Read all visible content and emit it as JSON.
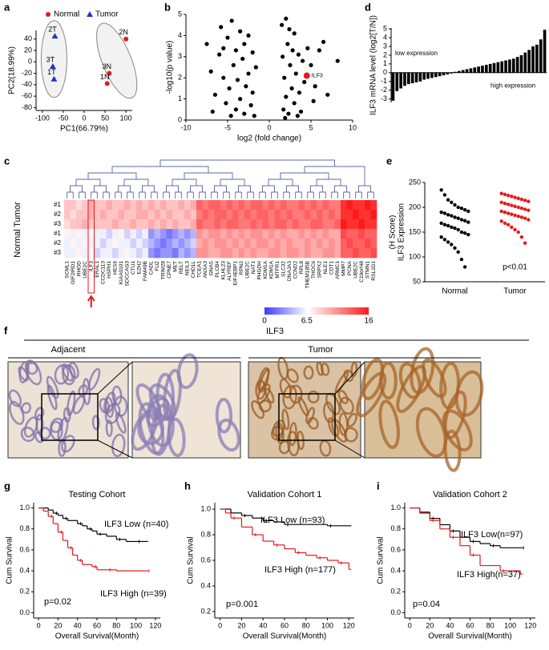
{
  "chart_data": [
    {
      "type": "scatter",
      "label": "a",
      "xlabel": "PC1(66.79%)",
      "ylabel": "PC2(18.99%)",
      "xlim": [
        -115,
        115
      ],
      "xticks": [
        -100,
        -50,
        0,
        50,
        100
      ],
      "ylim": [
        -85,
        55
      ],
      "yticks": [
        -80,
        -60,
        -40,
        -20,
        0,
        20,
        40
      ],
      "series": [
        {
          "name": "Normal",
          "color": "#e41a1c",
          "marker": "circle",
          "x": [
            100,
            60,
            55
          ],
          "values": [
            40,
            -20,
            -38
          ],
          "labels": [
            "2N",
            "3N",
            "1N"
          ]
        },
        {
          "name": "Tumor",
          "color": "#2233cc",
          "marker": "triangle",
          "x": [
            -70,
            -75,
            -72
          ],
          "values": [
            45,
            -8,
            -30
          ],
          "labels": [
            "2T",
            "3T",
            "1T"
          ]
        }
      ]
    },
    {
      "type": "scatter",
      "label": "b",
      "xlabel": "log2 (fold change)",
      "ylabel": "-log10(p value)",
      "xlim": [
        -10,
        10
      ],
      "xticks": [
        -10,
        -5,
        0,
        5,
        10
      ],
      "ylim": [
        0,
        5
      ],
      "yticks": [
        0,
        1,
        2,
        3,
        4,
        5
      ],
      "color": "#000000",
      "x": [
        -7.5,
        -7,
        -6.5,
        -6,
        -5.8,
        -5.5,
        -5.2,
        -5,
        -4.8,
        -4.5,
        -4.3,
        -4,
        -4,
        -3.8,
        -3.5,
        -3.5,
        -3.2,
        -3,
        -3,
        -2.8,
        -2.5,
        -2.5,
        -2.2,
        -2,
        -2,
        -1.8,
        -1.6,
        -6.8,
        -5.5,
        -4.6,
        1.5,
        1.6,
        1.7,
        1.8,
        2,
        2,
        2.2,
        2.3,
        2.5,
        2.7,
        3,
        3,
        3.2,
        3.5,
        3.6,
        3.8,
        4,
        4.2,
        4.6,
        5,
        5.3,
        5.5,
        6,
        6.5,
        7,
        8.2,
        2.4,
        1.9,
        3.4,
        2.8
      ],
      "values": [
        3.6,
        2.3,
        1.2,
        3.1,
        4.4,
        2,
        0.8,
        3.9,
        1.5,
        4.7,
        2.6,
        0.5,
        3.3,
        1.9,
        4.2,
        1,
        2.9,
        0.3,
        3.6,
        1.6,
        4,
        2.2,
        0.7,
        3.2,
        1.3,
        0.2,
        2.5,
        0.4,
        3.4,
        0.2,
        4.5,
        3,
        0.5,
        2,
        4.8,
        1.1,
        3.6,
        0.3,
        2.6,
        1.5,
        4.1,
        0.8,
        2.2,
        3.1,
        1.3,
        0.4,
        2.8,
        1.8,
        3.4,
        2.6,
        0.9,
        1.6,
        3.3,
        3.7,
        1.2,
        2.8,
        4.3,
        0.1,
        0.2,
        3.3
      ],
      "highlight": {
        "name": "ILF3",
        "x": 4.5,
        "y": 2.1,
        "color": "#e41a1c"
      }
    },
    {
      "type": "bar",
      "label": "d",
      "ylabel": "ILF3 mRNA level (log2[T/N])",
      "ylim": [
        -3.4,
        5.1
      ],
      "yticks": [
        -3,
        -2,
        -1,
        0,
        1,
        2,
        3,
        4,
        5
      ],
      "color": "#000000",
      "values": [
        -3.2,
        -2.1,
        -1.8,
        -1.5,
        -1.3,
        -1.2,
        -1.1,
        -1.0,
        -0.8,
        -0.7,
        -0.6,
        -0.5,
        -0.4,
        -0.3,
        -0.2,
        -0.1,
        0.1,
        0.2,
        0.3,
        0.4,
        0.5,
        0.6,
        0.7,
        0.8,
        0.9,
        1.0,
        1.1,
        1.2,
        1.3,
        1.4,
        1.5,
        1.6,
        1.8,
        2.0,
        2.3,
        2.6,
        3.0,
        3.2,
        3.8,
        4.9
      ],
      "annotations": [
        "low expression",
        "high expression"
      ]
    },
    {
      "type": "heatmap",
      "label": "c",
      "clim": [
        0,
        16
      ],
      "cticks": [
        0,
        6.5,
        16
      ],
      "genes": [
        "SCML1",
        "GIF2IRD1",
        "RHOD",
        "UBE2C",
        "ILF3",
        "ERAL1",
        "CCDC113",
        "HSPH1",
        "HES6",
        "KIAA0101",
        "SDCCAG3",
        "CTU1",
        "EZH2",
        "FAM49B",
        "CADL",
        "FUZ",
        "TRIM28",
        "CPNE7",
        "MET",
        "RELT",
        "NEIL3",
        "CHD1L",
        "TCEA1",
        "ANXA3",
        "GNAS",
        "PLCB4",
        "KLHL23",
        "ALYREF",
        "EIF4EBP1",
        "RPN2",
        "UBE2C",
        "NAT1",
        "PHGDH",
        "KDM1A",
        "KDM1A",
        "MTFR1",
        "SLC32",
        "DNAJA3",
        "CCND2",
        "RPL8",
        "TMEM185B",
        "THOC6",
        "SRPX2",
        "NLE1",
        "CDT1",
        "ARMC1",
        "MMP7",
        "PCNA",
        "UBE2C",
        "C19orf48",
        "STMN1",
        "RSL1D1"
      ],
      "series": [
        {
          "name": "Tumor",
          "row_labels": [
            "#1",
            "#2",
            "#3"
          ],
          "values": [
            [
              9,
              9,
              8,
              9,
              10,
              9,
              9,
              10,
              9,
              9,
              10,
              9,
              10,
              9,
              10,
              9,
              10,
              9,
              9,
              10,
              9,
              10,
              13,
              12,
              13,
              13,
              12,
              13,
              12,
              13,
              12,
              13,
              13,
              12,
              13,
              12,
              13,
              12,
              12,
              13,
              12,
              13,
              12,
              13,
              12,
              12,
              15,
              16,
              15,
              15,
              16,
              15
            ],
            [
              9,
              8,
              9,
              9,
              10,
              9,
              10,
              9,
              9,
              10,
              9,
              9,
              10,
              10,
              9,
              10,
              9,
              10,
              9,
              9,
              10,
              9,
              12,
              13,
              12,
              13,
              13,
              12,
              13,
              12,
              13,
              12,
              13,
              13,
              12,
              13,
              12,
              13,
              12,
              12,
              13,
              12,
              13,
              12,
              13,
              12,
              15,
              15,
              16,
              15,
              15,
              16
            ],
            [
              8,
              9,
              9,
              10,
              9,
              9,
              9,
              9,
              10,
              9,
              9,
              10,
              9,
              9,
              10,
              9,
              10,
              9,
              10,
              9,
              9,
              10,
              13,
              12,
              12,
              13,
              12,
              13,
              13,
              12,
              12,
              13,
              12,
              13,
              12,
              13,
              13,
              12,
              13,
              12,
              12,
              13,
              13,
              12,
              12,
              13,
              16,
              15,
              15,
              16,
              15,
              15
            ]
          ]
        },
        {
          "name": "Normal",
          "row_labels": [
            "#1",
            "#2",
            "#3"
          ],
          "values": [
            [
              7,
              6,
              7,
              6,
              7,
              6,
              6,
              5,
              6,
              7,
              5,
              6,
              5,
              6,
              3,
              4,
              3,
              2,
              3,
              4,
              3,
              4,
              11,
              10,
              11,
              11,
              10,
              11,
              10,
              11,
              10,
              11,
              11,
              10,
              11,
              10,
              11,
              10,
              10,
              11,
              10,
              11,
              10,
              11,
              10,
              10,
              14,
              13,
              13,
              14,
              13,
              13
            ],
            [
              6,
              7,
              6,
              7,
              6,
              6,
              5,
              6,
              7,
              6,
              6,
              5,
              6,
              5,
              4,
              3,
              2,
              3,
              4,
              3,
              4,
              5,
              10,
              11,
              10,
              11,
              11,
              10,
              11,
              10,
              11,
              10,
              11,
              11,
              10,
              11,
              10,
              11,
              10,
              10,
              11,
              10,
              11,
              10,
              11,
              10,
              13,
              14,
              13,
              13,
              14,
              13
            ],
            [
              6,
              6,
              7,
              6,
              7,
              5,
              6,
              6,
              5,
              6,
              7,
              6,
              5,
              6,
              3,
              2,
              3,
              3,
              2,
              4,
              3,
              4,
              11,
              11,
              10,
              10,
              11,
              11,
              10,
              11,
              10,
              11,
              10,
              10,
              11,
              11,
              10,
              11,
              11,
              10,
              11,
              10,
              10,
              11,
              11,
              10,
              13,
              13,
              14,
              13,
              13,
              14
            ]
          ]
        }
      ]
    },
    {
      "type": "strip",
      "label": "e",
      "ylabel": [
        "(H Score)",
        "ILF3 Expression"
      ],
      "ylim": [
        50,
        250
      ],
      "yticks": [
        50,
        100,
        150,
        200,
        250
      ],
      "categories": [
        "Normal",
        "Tumor"
      ],
      "series": [
        {
          "name": "Normal",
          "color": "#000000",
          "values": [
            235,
            225,
            215,
            210,
            205,
            200,
            198,
            195,
            192,
            190,
            188,
            185,
            183,
            180,
            178,
            175,
            173,
            170,
            168,
            165,
            163,
            160,
            158,
            155,
            150,
            148,
            145,
            140,
            135,
            130,
            125,
            118,
            110,
            95,
            80
          ]
        },
        {
          "name": "Tumor",
          "color": "#e41a1c",
          "values": [
            228,
            226,
            224,
            222,
            220,
            218,
            216,
            214,
            212,
            210,
            208,
            206,
            204,
            202,
            200,
            198,
            196,
            194,
            192,
            190,
            188,
            186,
            184,
            182,
            180,
            178,
            175,
            172,
            168,
            165,
            160,
            155,
            150,
            140,
            128
          ]
        }
      ],
      "annotation": "p<0.01"
    },
    {
      "type": "survival",
      "label": "g",
      "title": "Testing Cohort",
      "xlabel": "Overall Survival(Month)",
      "ylabel": "Cum Survival",
      "xlim": [
        -5,
        125
      ],
      "xticks": [
        0,
        20,
        40,
        60,
        80,
        100,
        120
      ],
      "ylim": [
        -0.05,
        1.05
      ],
      "yticks": [
        {
          "value": 0,
          "label": "0.0"
        },
        0.2,
        0.4,
        0.6,
        0.8,
        {
          "value": 1,
          "label": "1.0"
        }
      ],
      "series": [
        {
          "name": "ILF3 Low (n=40)",
          "color": "#000000",
          "x": [
            0,
            10,
            15,
            20,
            25,
            30,
            40,
            45,
            50,
            55,
            60,
            70,
            80,
            90,
            100,
            110
          ],
          "values": [
            1,
            0.98,
            0.95,
            0.93,
            0.9,
            0.88,
            0.85,
            0.83,
            0.8,
            0.78,
            0.75,
            0.73,
            0.7,
            0.68,
            0.68,
            0.68
          ]
        },
        {
          "name": "ILF3 High (n=39)",
          "color": "#e41a1c",
          "x": [
            0,
            5,
            10,
            15,
            20,
            25,
            30,
            35,
            40,
            45,
            55,
            60,
            70,
            80,
            110
          ],
          "values": [
            1,
            0.97,
            0.92,
            0.85,
            0.77,
            0.69,
            0.62,
            0.55,
            0.5,
            0.46,
            0.44,
            0.41,
            0.41,
            0.4,
            0.4
          ]
        }
      ],
      "annotation": "p=0.02"
    },
    {
      "type": "survival",
      "label": "h",
      "title": "Validation Cohort 1",
      "xlabel": "Overall Survival(Month)",
      "ylabel": "Cum Survival",
      "xlim": [
        -5,
        125
      ],
      "xticks": [
        0,
        20,
        40,
        60,
        80,
        100,
        120
      ],
      "ylim": [
        0.15,
        1.05
      ],
      "yticks": [
        0.2,
        0.4,
        0.6,
        0.8,
        {
          "value": 1,
          "label": "1.0"
        }
      ],
      "series": [
        {
          "name": "ILF3 Low   (n=93)",
          "color": "#000000",
          "x": [
            0,
            10,
            20,
            30,
            40,
            50,
            60,
            80,
            100,
            120
          ],
          "values": [
            1,
            0.97,
            0.95,
            0.93,
            0.91,
            0.9,
            0.88,
            0.88,
            0.87,
            0.87
          ]
        },
        {
          "name": "ILF3 High (n=177)",
          "color": "#e41a1c",
          "x": [
            0,
            5,
            10,
            20,
            30,
            40,
            50,
            60,
            70,
            80,
            90,
            100,
            110,
            120
          ],
          "values": [
            1,
            0.97,
            0.93,
            0.86,
            0.8,
            0.75,
            0.72,
            0.69,
            0.66,
            0.64,
            0.62,
            0.6,
            0.58,
            0.53
          ]
        }
      ],
      "annotation": "p=0.001"
    },
    {
      "type": "survival",
      "label": "i",
      "title": "Validation Cohort 2",
      "xlabel": "Overall Survival(Month)",
      "ylabel": "Cum Survival",
      "xlim": [
        -5,
        125
      ],
      "xticks": [
        0,
        20,
        40,
        60,
        80,
        100,
        120
      ],
      "ylim": [
        -0.05,
        1.05
      ],
      "yticks": [
        {
          "value": 0,
          "label": "0.0"
        },
        0.2,
        0.4,
        0.6,
        0.8,
        {
          "value": 1,
          "label": "1.0"
        }
      ],
      "series": [
        {
          "name": "ILF3 Low(n=97)",
          "color": "#000000",
          "x": [
            0,
            10,
            20,
            30,
            40,
            50,
            60,
            70,
            80,
            90,
            110
          ],
          "values": [
            1,
            0.96,
            0.9,
            0.84,
            0.78,
            0.72,
            0.68,
            0.66,
            0.64,
            0.62,
            0.62
          ]
        },
        {
          "name": "ILF3 High(n=37)",
          "color": "#e41a1c",
          "x": [
            0,
            10,
            20,
            30,
            40,
            50,
            60,
            70,
            90,
            110
          ],
          "values": [
            1,
            0.95,
            0.88,
            0.8,
            0.72,
            0.64,
            0.55,
            0.45,
            0.4,
            0.37
          ]
        }
      ],
      "annotation": "p=0.04"
    }
  ],
  "figure_f": {
    "label": "f",
    "title": "ILF3",
    "left": "Adjacent",
    "right": "Tumor"
  }
}
